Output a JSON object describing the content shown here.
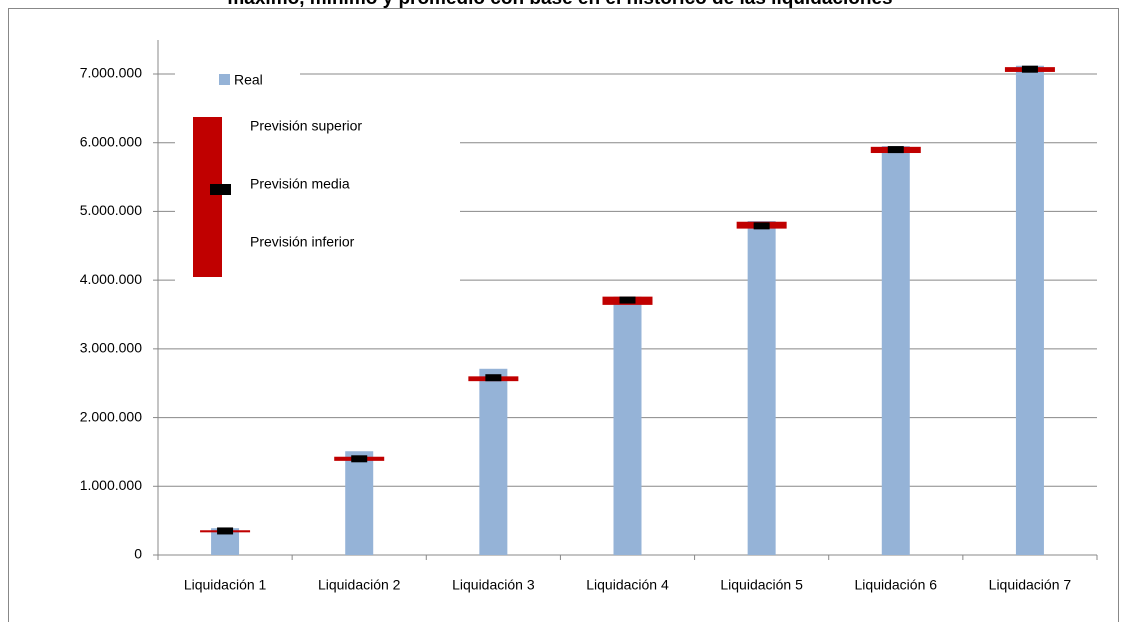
{
  "chart_data": {
    "type": "bar-range",
    "title": "máximo, mínimo y promedio con base en el histórico de las liquidaciones",
    "categories": [
      "Liquidación 1",
      "Liquidación 2",
      "Liquidación 3",
      "Liquidación 4",
      "Liquidación 5",
      "Liquidación 6",
      "Liquidación 7"
    ],
    "series": [
      {
        "name": "Real",
        "color": "#95b3d7",
        "values": [
          390000,
          1510000,
          2710000,
          3760000,
          4860000,
          5950000,
          7120000
        ]
      },
      {
        "name": "Previsión superior",
        "color": "#c00000",
        "values": [
          360000,
          1430000,
          2600000,
          3760000,
          4850000,
          5940000,
          7100000
        ]
      },
      {
        "name": "Previsión media",
        "color": "#000000",
        "values": [
          350000,
          1400000,
          2580000,
          3710000,
          4790000,
          5900000,
          7070000
        ]
      },
      {
        "name": "Previsión inferior",
        "color": "#c00000",
        "values": [
          330000,
          1370000,
          2530000,
          3640000,
          4750000,
          5850000,
          7030000
        ]
      }
    ],
    "ylim": [
      0,
      7500000
    ],
    "yticks": [
      0,
      {
        "value": 1000000,
        "label": "1.000.000"
      },
      {
        "value": 2000000,
        "label": "2.000.000"
      },
      {
        "value": 3000000,
        "label": "3.000.000"
      },
      {
        "value": 4000000,
        "label": "4.000.000"
      },
      {
        "value": 5000000,
        "label": "5.000.000"
      },
      {
        "value": 6000000,
        "label": "6.000.000"
      },
      {
        "value": 7000000,
        "label": "7.000.000"
      }
    ],
    "grid": true
  }
}
